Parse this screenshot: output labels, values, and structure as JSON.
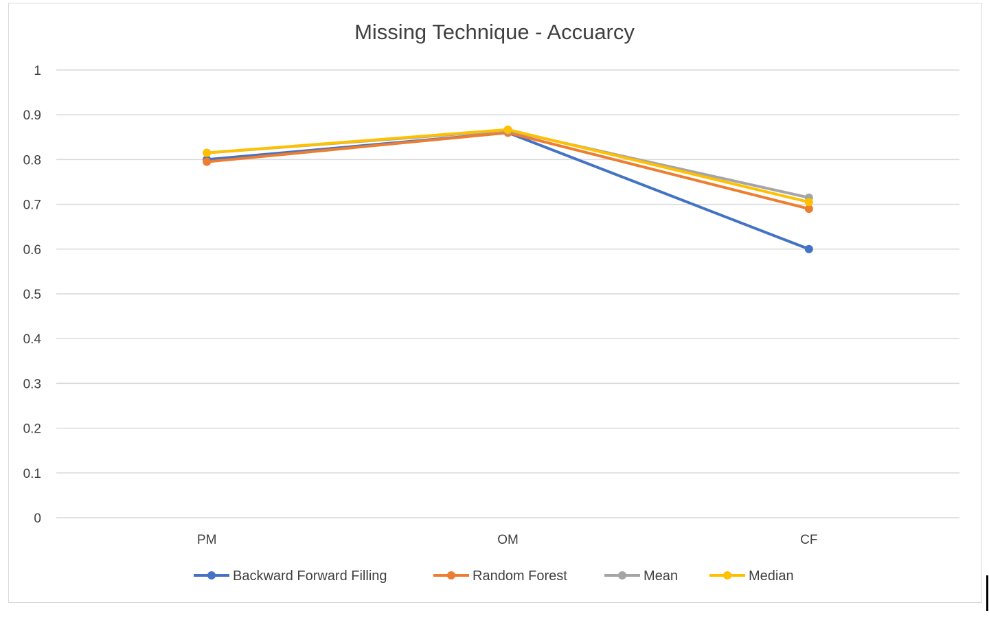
{
  "chart_data": {
    "type": "line",
    "title": "Missing Technique - Accuarcy",
    "xlabel": "",
    "ylabel": "",
    "categories": [
      "PM",
      "OM",
      "CF"
    ],
    "ylim": [
      0,
      1
    ],
    "yticks": [
      0,
      0.1,
      0.2,
      0.3,
      0.4,
      0.5,
      0.6,
      0.7,
      0.8,
      0.9,
      1
    ],
    "ytick_labels": [
      "0",
      "0.1",
      "0.2",
      "0.3",
      "0.4",
      "0.5",
      "0.6",
      "0.7",
      "0.8",
      "0.9",
      "1"
    ],
    "grid": true,
    "legend_position": "bottom",
    "series": [
      {
        "name": "Backward Forward Filling",
        "color": "#4472C4",
        "values": [
          0.8,
          0.86,
          0.6
        ]
      },
      {
        "name": "Random Forest",
        "color": "#ED7D31",
        "values": [
          0.795,
          0.86,
          0.69
        ]
      },
      {
        "name": "Mean",
        "color": "#A5A5A5",
        "values": [
          0.815,
          0.865,
          0.715
        ]
      },
      {
        "name": "Median",
        "color": "#FFC000",
        "values": [
          0.815,
          0.867,
          0.705
        ]
      }
    ]
  }
}
